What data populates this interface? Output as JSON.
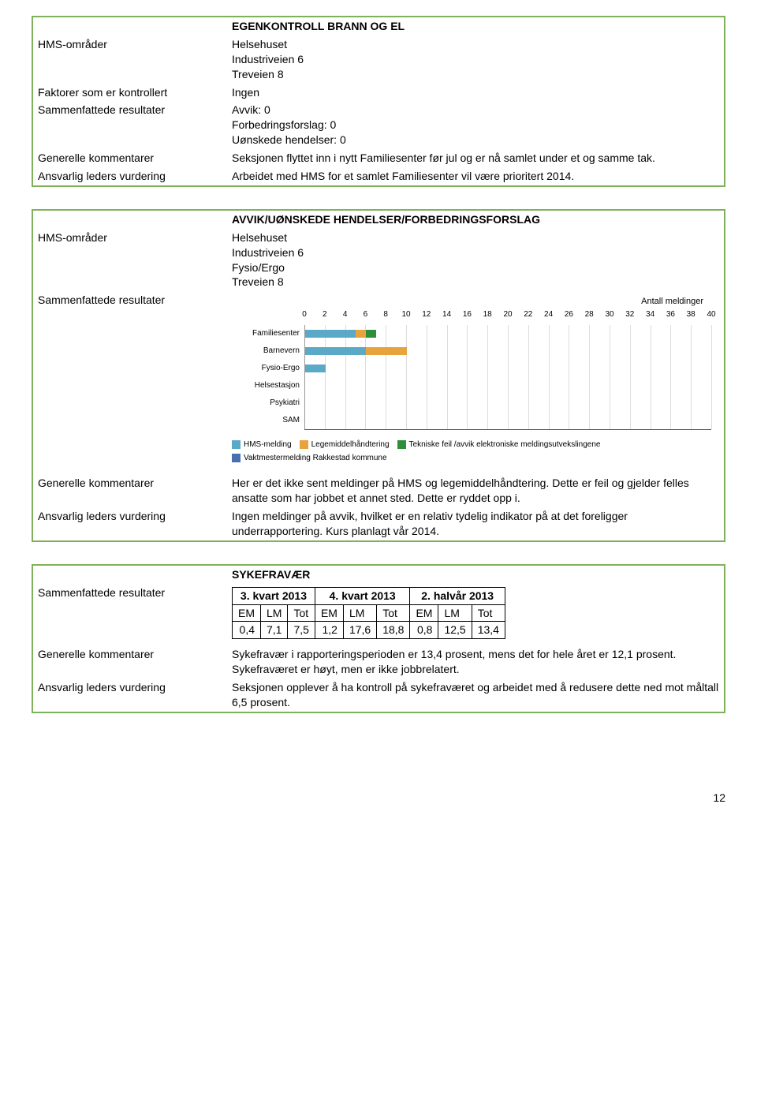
{
  "box1": {
    "header": "EGENKONTROLL BRANN OG EL",
    "rows": [
      {
        "label": "HMS-områder",
        "value": "Helsehuset\nIndustriveien 6\nTreveien 8"
      },
      {
        "label": "Faktorer som er kontrollert",
        "value": "Ingen"
      },
      {
        "label": "Sammenfattede resultater",
        "value": "Avvik: 0\nForbedringsforslag: 0\nUønskede hendelser: 0"
      },
      {
        "label": "Generelle kommentarer",
        "value": "Seksjonen flyttet inn i nytt Familiesenter før jul og er nå samlet under et og samme tak."
      },
      {
        "label": "Ansvarlig leders vurdering",
        "value": "Arbeidet med HMS for et samlet Familiesenter vil være prioritert 2014."
      }
    ]
  },
  "box2": {
    "header": "AVVIK/UØNSKEDE HENDELSER/FORBEDRINGSFORSLAG",
    "top_rows": [
      {
        "label": "HMS-områder",
        "value": "Helsehuset\nIndustriveien 6\nFysio/Ergo\nTreveien 8"
      }
    ],
    "resultater_label": "Sammenfattede resultater",
    "chart": {
      "axis_title": "Antall meldinger",
      "xmax": 40,
      "xticks": [
        0,
        2,
        4,
        6,
        8,
        10,
        12,
        14,
        16,
        18,
        20,
        22,
        24,
        26,
        28,
        30,
        32,
        34,
        36,
        38,
        40
      ],
      "categories": [
        "Familiesenter",
        "Barnevern",
        "Fysio-Ergo",
        "Helsestasjon",
        "Psykiatri",
        "SAM"
      ],
      "series_colors": {
        "hms": "#5aa9c7",
        "lege": "#e8a33d",
        "tek": "#2d8f3c",
        "vakt": "#4a6fb0"
      },
      "data": {
        "Familiesenter": {
          "hms": 5,
          "lege": 1,
          "tek": 1
        },
        "Barnevern": {
          "hms": 6,
          "lege": 4
        },
        "Fysio-Ergo": {
          "hms": 2
        },
        "Helsestasjon": {},
        "Psykiatri": {},
        "SAM": {}
      },
      "legend1": [
        {
          "color": "#5aa9c7",
          "label": "HMS-melding"
        },
        {
          "color": "#e8a33d",
          "label": "Legemiddelhåndtering"
        },
        {
          "color": "#2d8f3c",
          "label": "Tekniske feil /avvik elektroniske meldingsutvekslingene"
        }
      ],
      "legend2": [
        {
          "color": "#4a6fb0",
          "label": "Vaktmestermelding Rakkestad kommune"
        }
      ]
    },
    "bottom_rows": [
      {
        "label": "Generelle kommentarer",
        "value": "Her er det ikke sent meldinger på HMS og legemiddelhåndtering. Dette er feil og gjelder felles ansatte som har jobbet et annet sted. Dette er ryddet opp i."
      },
      {
        "label": "Ansvarlig leders vurdering",
        "value": "Ingen meldinger på avvik, hvilket er en relativ tydelig indikator på at det foreligger underrapportering. Kurs planlagt vår 2014."
      }
    ]
  },
  "box3": {
    "header": "SYKEFRAVÆR",
    "resultater_label": "Sammenfattede resultater",
    "table": {
      "group_headers": [
        "3. kvart 2013",
        "4. kvart 2013",
        "2. halvår 2013"
      ],
      "sub_headers": [
        "EM",
        "LM",
        "Tot",
        "EM",
        "LM",
        "Tot",
        "EM",
        "LM",
        "Tot"
      ],
      "values": [
        "0,4",
        "7,1",
        "7,5",
        "1,2",
        "17,6",
        "18,8",
        "0,8",
        "12,5",
        "13,4"
      ]
    },
    "bottom_rows": [
      {
        "label": "Generelle kommentarer",
        "value": "Sykefravær i rapporteringsperioden er 13,4 prosent, mens det for hele året er 12,1 prosent. Sykefraværet er høyt, men er ikke jobbrelatert."
      },
      {
        "label": "Ansvarlig leders vurdering",
        "value": "Seksjonen opplever å ha kontroll på sykefraværet og arbeidet med å redusere dette ned mot måltall 6,5 prosent."
      }
    ]
  },
  "page_number": "12"
}
